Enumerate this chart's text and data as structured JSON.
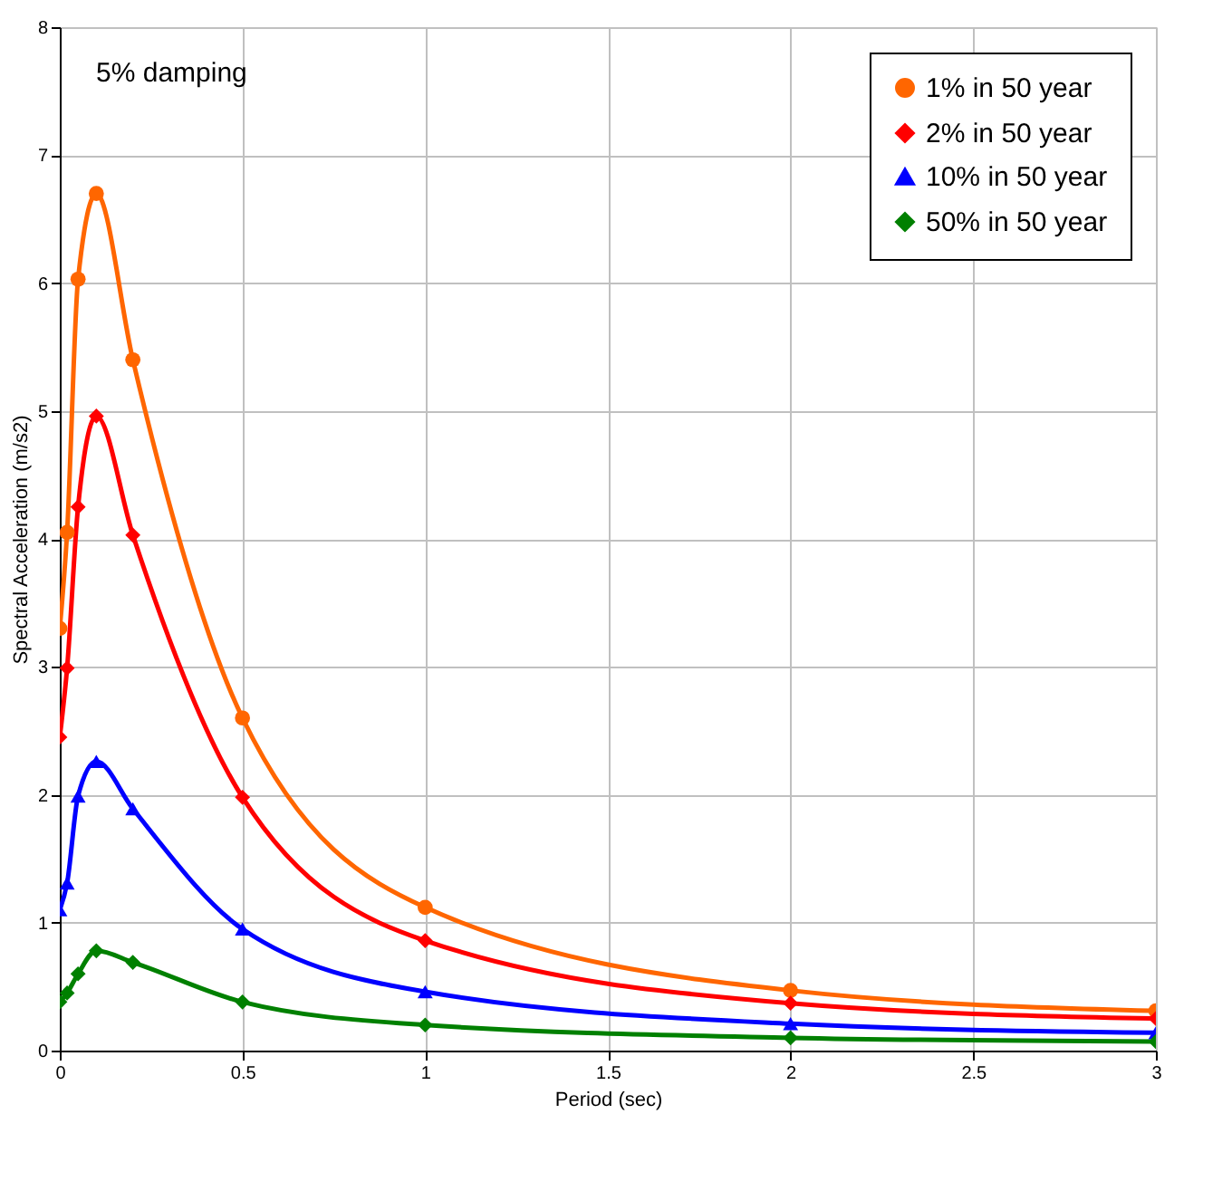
{
  "chart_data": {
    "type": "line",
    "xlabel": "Period (sec)",
    "ylabel": "Spectral Acceleration (m/s2)",
    "annotations": [
      "5% damping"
    ],
    "xlim": [
      0,
      3
    ],
    "xticks": [
      0,
      0.5,
      1,
      1.5,
      2,
      2.5,
      3
    ],
    "ylim": [
      0,
      8
    ],
    "yticks": [
      0,
      1,
      2,
      3,
      4,
      5,
      6,
      7,
      8
    ],
    "grid": true,
    "legend": "top right",
    "line_style": "solid",
    "x": [
      0,
      0.02,
      0.05,
      0.1,
      0.2,
      0.5,
      1,
      2,
      3
    ],
    "series": [
      {
        "name": "1% in 50 year",
        "color": "#ff6600",
        "marker": "circle",
        "values": [
          3.3,
          4.05,
          6.03,
          6.7,
          5.4,
          2.6,
          1.12,
          0.47,
          0.31
        ]
      },
      {
        "name": "2% in 50 year",
        "color": "#ff0000",
        "marker": "diamond",
        "values": [
          2.45,
          2.99,
          4.25,
          4.96,
          4.03,
          1.98,
          0.86,
          0.37,
          0.25
        ]
      },
      {
        "name": "10% in 50 year",
        "color": "#0000ff",
        "marker": "triangle",
        "values": [
          1.1,
          1.31,
          1.99,
          2.26,
          1.89,
          0.95,
          0.46,
          0.21,
          0.14
        ]
      },
      {
        "name": "50% in 50 year",
        "color": "#008000",
        "marker": "diamond",
        "values": [
          0.38,
          0.45,
          0.6,
          0.78,
          0.69,
          0.38,
          0.2,
          0.1,
          0.07
        ]
      }
    ]
  }
}
